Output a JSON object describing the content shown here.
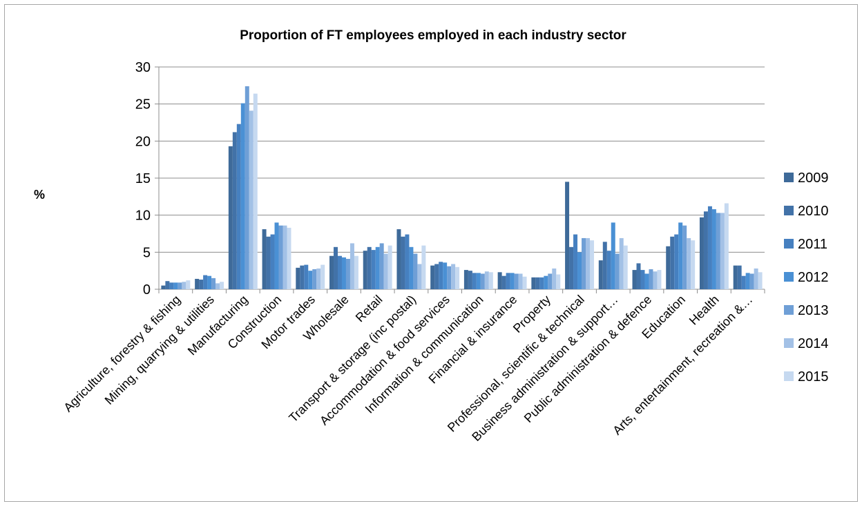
{
  "chart_data": {
    "type": "bar",
    "title": "Proportion of FT employees employed in each industry sector",
    "ylabel": "%",
    "xlabel": "",
    "ylim": [
      0,
      30
    ],
    "yticks": [
      0,
      5,
      10,
      15,
      20,
      25,
      30
    ],
    "grid": true,
    "legend_position": "right",
    "categories": [
      "Agriculture, forestry & fishing",
      "Mining, quarrying & utilities",
      "Manufacturing",
      "Construction",
      "Motor trades",
      "Wholesale",
      "Retail",
      "Transport & storage (inc postal)",
      "Accommodation & food services",
      "Information & communication",
      "Financial & insurance",
      "Property",
      "Professional, scientific & technical",
      "Business administration & support…",
      "Public administration & defence",
      "Education",
      "Health",
      "Arts, entertainment, recreation &…"
    ],
    "series": [
      {
        "name": "2009",
        "color": "#3e6a99",
        "values": [
          0.5,
          1.4,
          19.3,
          8.1,
          2.9,
          4.5,
          5.2,
          8.1,
          3.2,
          2.6,
          2.3,
          1.6,
          14.5,
          3.9,
          2.6,
          5.8,
          9.7,
          3.2
        ]
      },
      {
        "name": "2010",
        "color": "#4272a8",
        "values": [
          1.1,
          1.3,
          21.2,
          7.1,
          3.2,
          5.7,
          5.7,
          7.1,
          3.4,
          2.5,
          1.8,
          1.6,
          5.7,
          6.4,
          3.5,
          7.1,
          10.5,
          3.2
        ]
      },
      {
        "name": "2011",
        "color": "#4680c0",
        "values": [
          0.9,
          1.9,
          22.3,
          7.4,
          3.3,
          4.5,
          5.3,
          7.4,
          3.7,
          2.2,
          2.2,
          1.6,
          7.4,
          5.2,
          2.6,
          7.4,
          11.2,
          1.8
        ]
      },
      {
        "name": "2012",
        "color": "#4a90d4",
        "values": [
          0.9,
          1.8,
          25.1,
          9.0,
          2.5,
          4.3,
          5.7,
          5.7,
          3.6,
          2.2,
          2.2,
          1.8,
          5.0,
          9.0,
          2.1,
          9.0,
          10.8,
          2.2
        ]
      },
      {
        "name": "2013",
        "color": "#6f9fd6",
        "values": [
          0.9,
          1.5,
          27.4,
          8.6,
          2.7,
          4.1,
          6.2,
          4.8,
          3.1,
          2.1,
          2.1,
          2.1,
          6.9,
          4.8,
          2.7,
          8.6,
          10.3,
          2.1
        ]
      },
      {
        "name": "2014",
        "color": "#a3c1e6",
        "values": [
          1.0,
          0.8,
          24.1,
          8.6,
          2.8,
          6.2,
          4.8,
          3.4,
          3.4,
          2.4,
          2.1,
          2.8,
          6.9,
          6.9,
          2.4,
          6.9,
          10.3,
          2.8
        ]
      },
      {
        "name": "2015",
        "color": "#c6d9f0",
        "values": [
          1.2,
          1.0,
          26.4,
          8.3,
          3.3,
          4.5,
          5.9,
          5.9,
          3.0,
          2.3,
          1.7,
          2.0,
          6.6,
          5.9,
          2.6,
          6.6,
          11.6,
          2.3
        ]
      }
    ]
  }
}
